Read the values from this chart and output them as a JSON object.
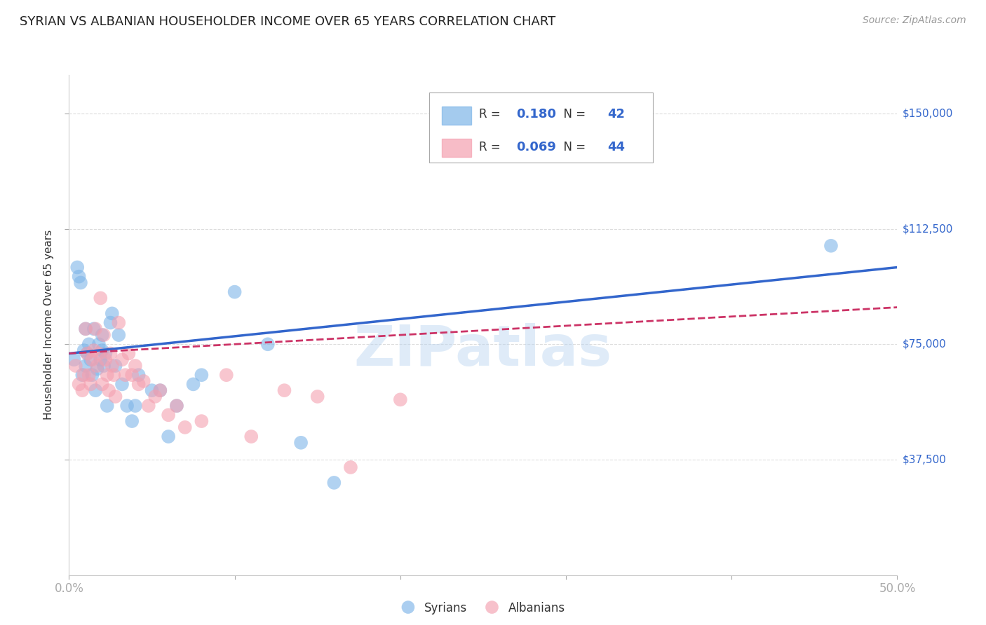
{
  "title": "SYRIAN VS ALBANIAN HOUSEHOLDER INCOME OVER 65 YEARS CORRELATION CHART",
  "source": "Source: ZipAtlas.com",
  "ylabel": "Householder Income Over 65 years",
  "xlim": [
    0.0,
    0.5
  ],
  "ylim": [
    0,
    162500
  ],
  "ytick_positions": [
    37500,
    75000,
    112500,
    150000
  ],
  "ytick_labels": [
    "$37,500",
    "$75,000",
    "$112,500",
    "$150,000"
  ],
  "grid_color": "#dddddd",
  "background_color": "#ffffff",
  "watermark": "ZIPatlas",
  "syrians_color": "#7EB5E8",
  "albanians_color": "#F4A0B0",
  "syrians_line_color": "#3366CC",
  "albanians_line_color": "#CC3366",
  "legend_syrian_r": "0.180",
  "legend_syrian_n": "42",
  "legend_albanian_r": "0.069",
  "legend_albanian_n": "44",
  "syrians_x": [
    0.003,
    0.005,
    0.006,
    0.007,
    0.008,
    0.009,
    0.01,
    0.01,
    0.011,
    0.012,
    0.013,
    0.014,
    0.015,
    0.016,
    0.017,
    0.018,
    0.019,
    0.02,
    0.02,
    0.021,
    0.022,
    0.023,
    0.025,
    0.026,
    0.028,
    0.03,
    0.032,
    0.035,
    0.038,
    0.04,
    0.042,
    0.05,
    0.055,
    0.06,
    0.065,
    0.075,
    0.08,
    0.1,
    0.12,
    0.14,
    0.16,
    0.46
  ],
  "syrians_y": [
    70000,
    100000,
    97000,
    95000,
    65000,
    73000,
    80000,
    68000,
    72000,
    75000,
    70000,
    65000,
    80000,
    60000,
    67000,
    75000,
    70000,
    73000,
    78000,
    68000,
    72000,
    55000,
    82000,
    85000,
    68000,
    78000,
    62000,
    55000,
    50000,
    55000,
    65000,
    60000,
    60000,
    45000,
    55000,
    62000,
    65000,
    92000,
    75000,
    43000,
    30000,
    107000
  ],
  "albanians_x": [
    0.004,
    0.006,
    0.008,
    0.009,
    0.01,
    0.011,
    0.012,
    0.013,
    0.014,
    0.015,
    0.016,
    0.017,
    0.018,
    0.019,
    0.02,
    0.021,
    0.022,
    0.023,
    0.024,
    0.025,
    0.026,
    0.027,
    0.028,
    0.03,
    0.032,
    0.034,
    0.036,
    0.038,
    0.04,
    0.042,
    0.045,
    0.048,
    0.052,
    0.055,
    0.06,
    0.065,
    0.07,
    0.08,
    0.095,
    0.11,
    0.13,
    0.15,
    0.17,
    0.2
  ],
  "albanians_y": [
    68000,
    62000,
    60000,
    65000,
    80000,
    72000,
    65000,
    62000,
    70000,
    73000,
    80000,
    68000,
    72000,
    90000,
    62000,
    78000,
    70000,
    65000,
    60000,
    72000,
    68000,
    65000,
    58000,
    82000,
    70000,
    65000,
    72000,
    65000,
    68000,
    62000,
    63000,
    55000,
    58000,
    60000,
    52000,
    55000,
    48000,
    50000,
    65000,
    45000,
    60000,
    58000,
    35000,
    57000
  ]
}
